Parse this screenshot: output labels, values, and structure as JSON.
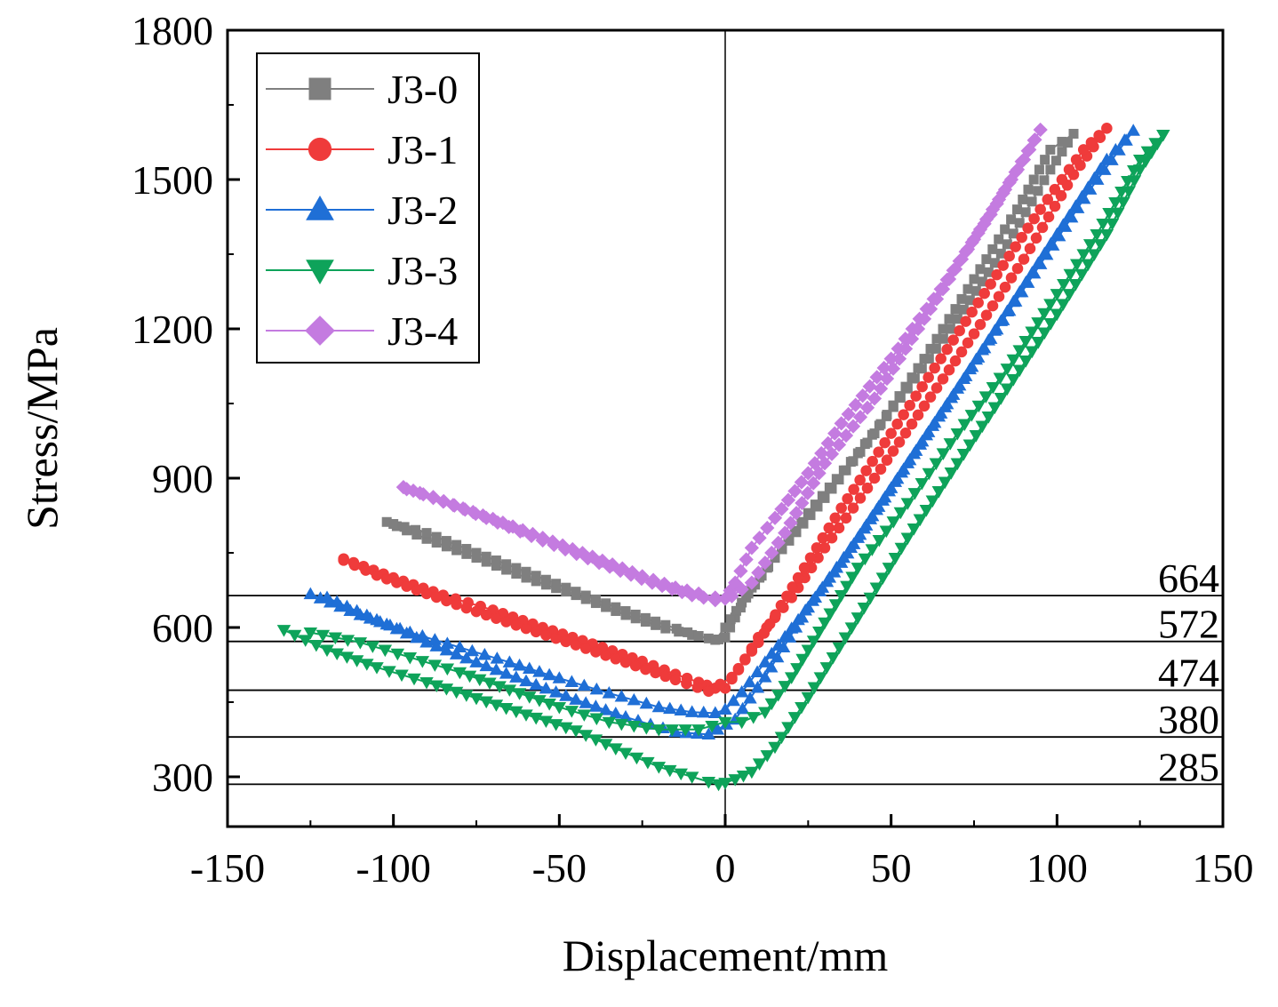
{
  "chart_data": {
    "type": "line",
    "title": "",
    "xlabel": "Displacement/mm",
    "ylabel": "Stress/MPa",
    "xlim": [
      -150,
      150
    ],
    "ylim": [
      200,
      1800
    ],
    "xticks": [
      -150,
      -100,
      -50,
      0,
      50,
      100,
      150
    ],
    "yticks": [
      300,
      600,
      900,
      1200,
      1500,
      1800
    ],
    "xtick_labels": [
      "-150",
      "-100",
      "-50",
      "0",
      "50",
      "100",
      "150"
    ],
    "ytick_labels": [
      "300",
      "600",
      "900",
      "1200",
      "1500",
      "1800"
    ],
    "legend_position": "top-left",
    "reference_lines": [
      {
        "y": 664,
        "label": "664"
      },
      {
        "y": 572,
        "label": "572"
      },
      {
        "y": 474,
        "label": "474"
      },
      {
        "y": 380,
        "label": "380"
      },
      {
        "y": 285,
        "label": "285"
      }
    ],
    "series": [
      {
        "name": "J3-0",
        "color": "#7f7f7f",
        "marker": "square",
        "x": [
          -102,
          -90,
          -75,
          -60,
          -45,
          -30,
          -18,
          -10,
          -5,
          -2,
          0,
          3,
          8,
          15,
          25,
          40,
          55,
          70,
          85,
          98,
          105,
          98,
          88,
          75,
          60,
          45,
          30,
          15,
          5,
          0,
          -3,
          -8,
          -18,
          -30,
          -45,
          -60,
          -75,
          -90,
          -100
        ],
        "y": [
          812,
          778,
          740,
          700,
          665,
          625,
          598,
          585,
          578,
          576,
          580,
          620,
          680,
          740,
          830,
          950,
          1080,
          1220,
          1370,
          1520,
          1592,
          1560,
          1440,
          1300,
          1140,
          990,
          860,
          740,
          650,
          600,
          575,
          583,
          605,
          633,
          672,
          712,
          750,
          790,
          808
        ]
      },
      {
        "name": "J3-1",
        "color": "#ef3b3b",
        "marker": "circle",
        "x": [
          -115,
          -100,
          -85,
          -70,
          -55,
          -40,
          -25,
          -15,
          -8,
          -3,
          0,
          4,
          10,
          20,
          30,
          45,
          60,
          75,
          90,
          105,
          115,
          108,
          95,
          80,
          65,
          50,
          35,
          22,
          10,
          2,
          -5,
          -15,
          -30,
          -45,
          -60,
          -75,
          -90,
          -105,
          -115
        ],
        "y": [
          738,
          700,
          665,
          635,
          600,
          567,
          532,
          506,
          490,
          478,
          478,
          515,
          580,
          660,
          760,
          900,
          1045,
          1190,
          1340,
          1510,
          1603,
          1560,
          1440,
          1290,
          1140,
          990,
          840,
          700,
          570,
          500,
          472,
          495,
          530,
          565,
          598,
          632,
          668,
          705,
          735
        ]
      },
      {
        "name": "J3-2",
        "color": "#1f6fd6",
        "marker": "triangle-up",
        "x": [
          -125,
          -110,
          -95,
          -80,
          -65,
          -50,
          -35,
          -20,
          -10,
          -3,
          0,
          5,
          12,
          22,
          35,
          50,
          65,
          80,
          95,
          110,
          123,
          115,
          100,
          85,
          70,
          55,
          40,
          25,
          12,
          3,
          -5,
          -15,
          -30,
          -45,
          -60,
          -75,
          -90,
          -105,
          -120
        ],
        "y": [
          667,
          625,
          590,
          560,
          530,
          498,
          468,
          440,
          430,
          428,
          435,
          470,
          530,
          615,
          730,
          880,
          1030,
          1180,
          1330,
          1480,
          1598,
          1540,
          1390,
          1235,
          1080,
          930,
          780,
          640,
          500,
          415,
          385,
          390,
          420,
          455,
          492,
          530,
          570,
          615,
          660
        ]
      },
      {
        "name": "J3-3",
        "color": "#0ea35a",
        "marker": "triangle-down",
        "x": [
          -133,
          -120,
          -105,
          -90,
          -75,
          -60,
          -45,
          -30,
          -20,
          -10,
          -5,
          -2,
          0,
          3,
          8,
          15,
          25,
          40,
          55,
          70,
          85,
          100,
          115,
          125,
          132,
          125,
          112,
          98,
          85,
          70,
          55,
          40,
          30,
          20,
          12,
          5,
          0,
          -8,
          -20,
          -35,
          -50,
          -65,
          -80,
          -95,
          -110,
          -125
        ],
        "y": [
          595,
          555,
          520,
          490,
          458,
          425,
          393,
          348,
          320,
          300,
          290,
          285,
          288,
          295,
          310,
          360,
          460,
          620,
          780,
          930,
          1080,
          1230,
          1390,
          1520,
          1590,
          1540,
          1390,
          1250,
          1120,
          990,
          850,
          720,
          610,
          500,
          430,
          410,
          410,
          395,
          395,
          410,
          440,
          475,
          510,
          540,
          570,
          590
        ]
      },
      {
        "name": "J3-4",
        "color": "#c47be0",
        "marker": "diamond",
        "x": [
          -97,
          -85,
          -70,
          -55,
          -40,
          -25,
          -15,
          -8,
          -3,
          0,
          3,
          8,
          15,
          25,
          35,
          50,
          65,
          80,
          95,
          90,
          75,
          60,
          45,
          30,
          18,
          8,
          2,
          -3,
          -10,
          -22,
          -38,
          -55,
          -72,
          -88,
          -96
        ],
        "y": [
          882,
          853,
          818,
          780,
          742,
          703,
          680,
          668,
          660,
          658,
          690,
          760,
          820,
          910,
          1010,
          1140,
          1280,
          1430,
          1600,
          1540,
          1380,
          1220,
          1060,
          930,
          790,
          690,
          663,
          655,
          665,
          690,
          730,
          775,
          820,
          862,
          878
        ]
      }
    ]
  }
}
